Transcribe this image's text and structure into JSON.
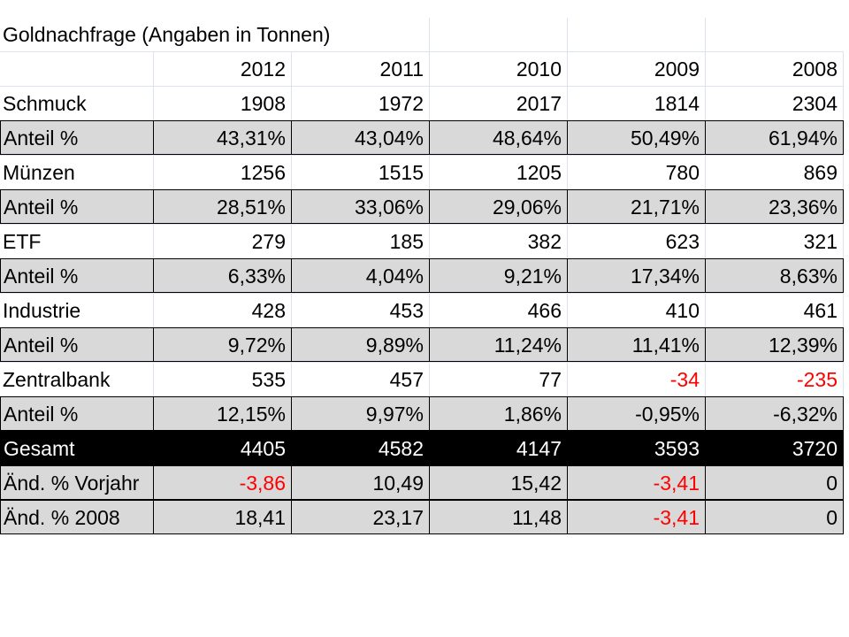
{
  "table": {
    "title": "Goldnachfrage (Angaben in Tonnen)",
    "header": [
      "2012",
      "2011",
      "2010",
      "2009",
      "2008"
    ],
    "rows": [
      {
        "label": "Schmuck",
        "cells": [
          "1908",
          "1972",
          "2017",
          "1814",
          "2304"
        ],
        "fill": "#ffffff"
      },
      {
        "label": "Anteil %",
        "cells": [
          "43,31%",
          "43,04%",
          "48,64%",
          "50,49%",
          "61,94%"
        ],
        "fill": "#d9d9d9"
      },
      {
        "label": "Münzen",
        "cells": [
          "1256",
          "1515",
          "1205",
          "780",
          "869"
        ],
        "fill": "#ffffff"
      },
      {
        "label": "Anteil %",
        "cells": [
          "28,51%",
          "33,06%",
          "29,06%",
          "21,71%",
          "23,36%"
        ],
        "fill": "#d9d9d9"
      },
      {
        "label": "ETF",
        "cells": [
          "279",
          "185",
          "382",
          "623",
          "321"
        ],
        "fill": "#ffffff"
      },
      {
        "label": "Anteil %",
        "cells": [
          "6,33%",
          "4,04%",
          "9,21%",
          "17,34%",
          "8,63%"
        ],
        "fill": "#d9d9d9"
      },
      {
        "label": "Industrie",
        "cells": [
          "428",
          "453",
          "466",
          "410",
          "461"
        ],
        "fill": "#ffffff"
      },
      {
        "label": "Anteil %",
        "cells": [
          "9,72%",
          "9,89%",
          "11,24%",
          "11,41%",
          "12,39%"
        ],
        "fill": "#d9d9d9"
      },
      {
        "label": "Zentralbank",
        "cells": [
          "535",
          "457",
          "77",
          "-34",
          "-235"
        ],
        "fill": "#ffffff",
        "colors": [
          "#000000",
          "#000000",
          "#000000",
          "#ff0000",
          "#ff0000"
        ]
      },
      {
        "label": "Anteil %",
        "cells": [
          "12,15%",
          "9,97%",
          "1,86%",
          "-0,95%",
          "-6,32%"
        ],
        "fill": "#d9d9d9"
      },
      {
        "label": "Gesamt",
        "cells": [
          "4405",
          "4582",
          "4147",
          "3593",
          "3720"
        ],
        "fill": "#000000",
        "text_color": "#ffffff"
      },
      {
        "label": "Änd. % Vorjahr",
        "cells": [
          "-3,86",
          "10,49",
          "15,42",
          "-3,41",
          "0"
        ],
        "fill": "#d9d9d9",
        "colors": [
          "#ff0000",
          "#000000",
          "#000000",
          "#ff0000",
          "#000000"
        ]
      },
      {
        "label": "Änd. % 2008",
        "cells": [
          "18,41",
          "23,17",
          "11,48",
          "-3,41",
          "0"
        ],
        "fill": "#d9d9d9",
        "colors": [
          "#000000",
          "#000000",
          "#000000",
          "#ff0000",
          "#000000"
        ]
      }
    ]
  }
}
